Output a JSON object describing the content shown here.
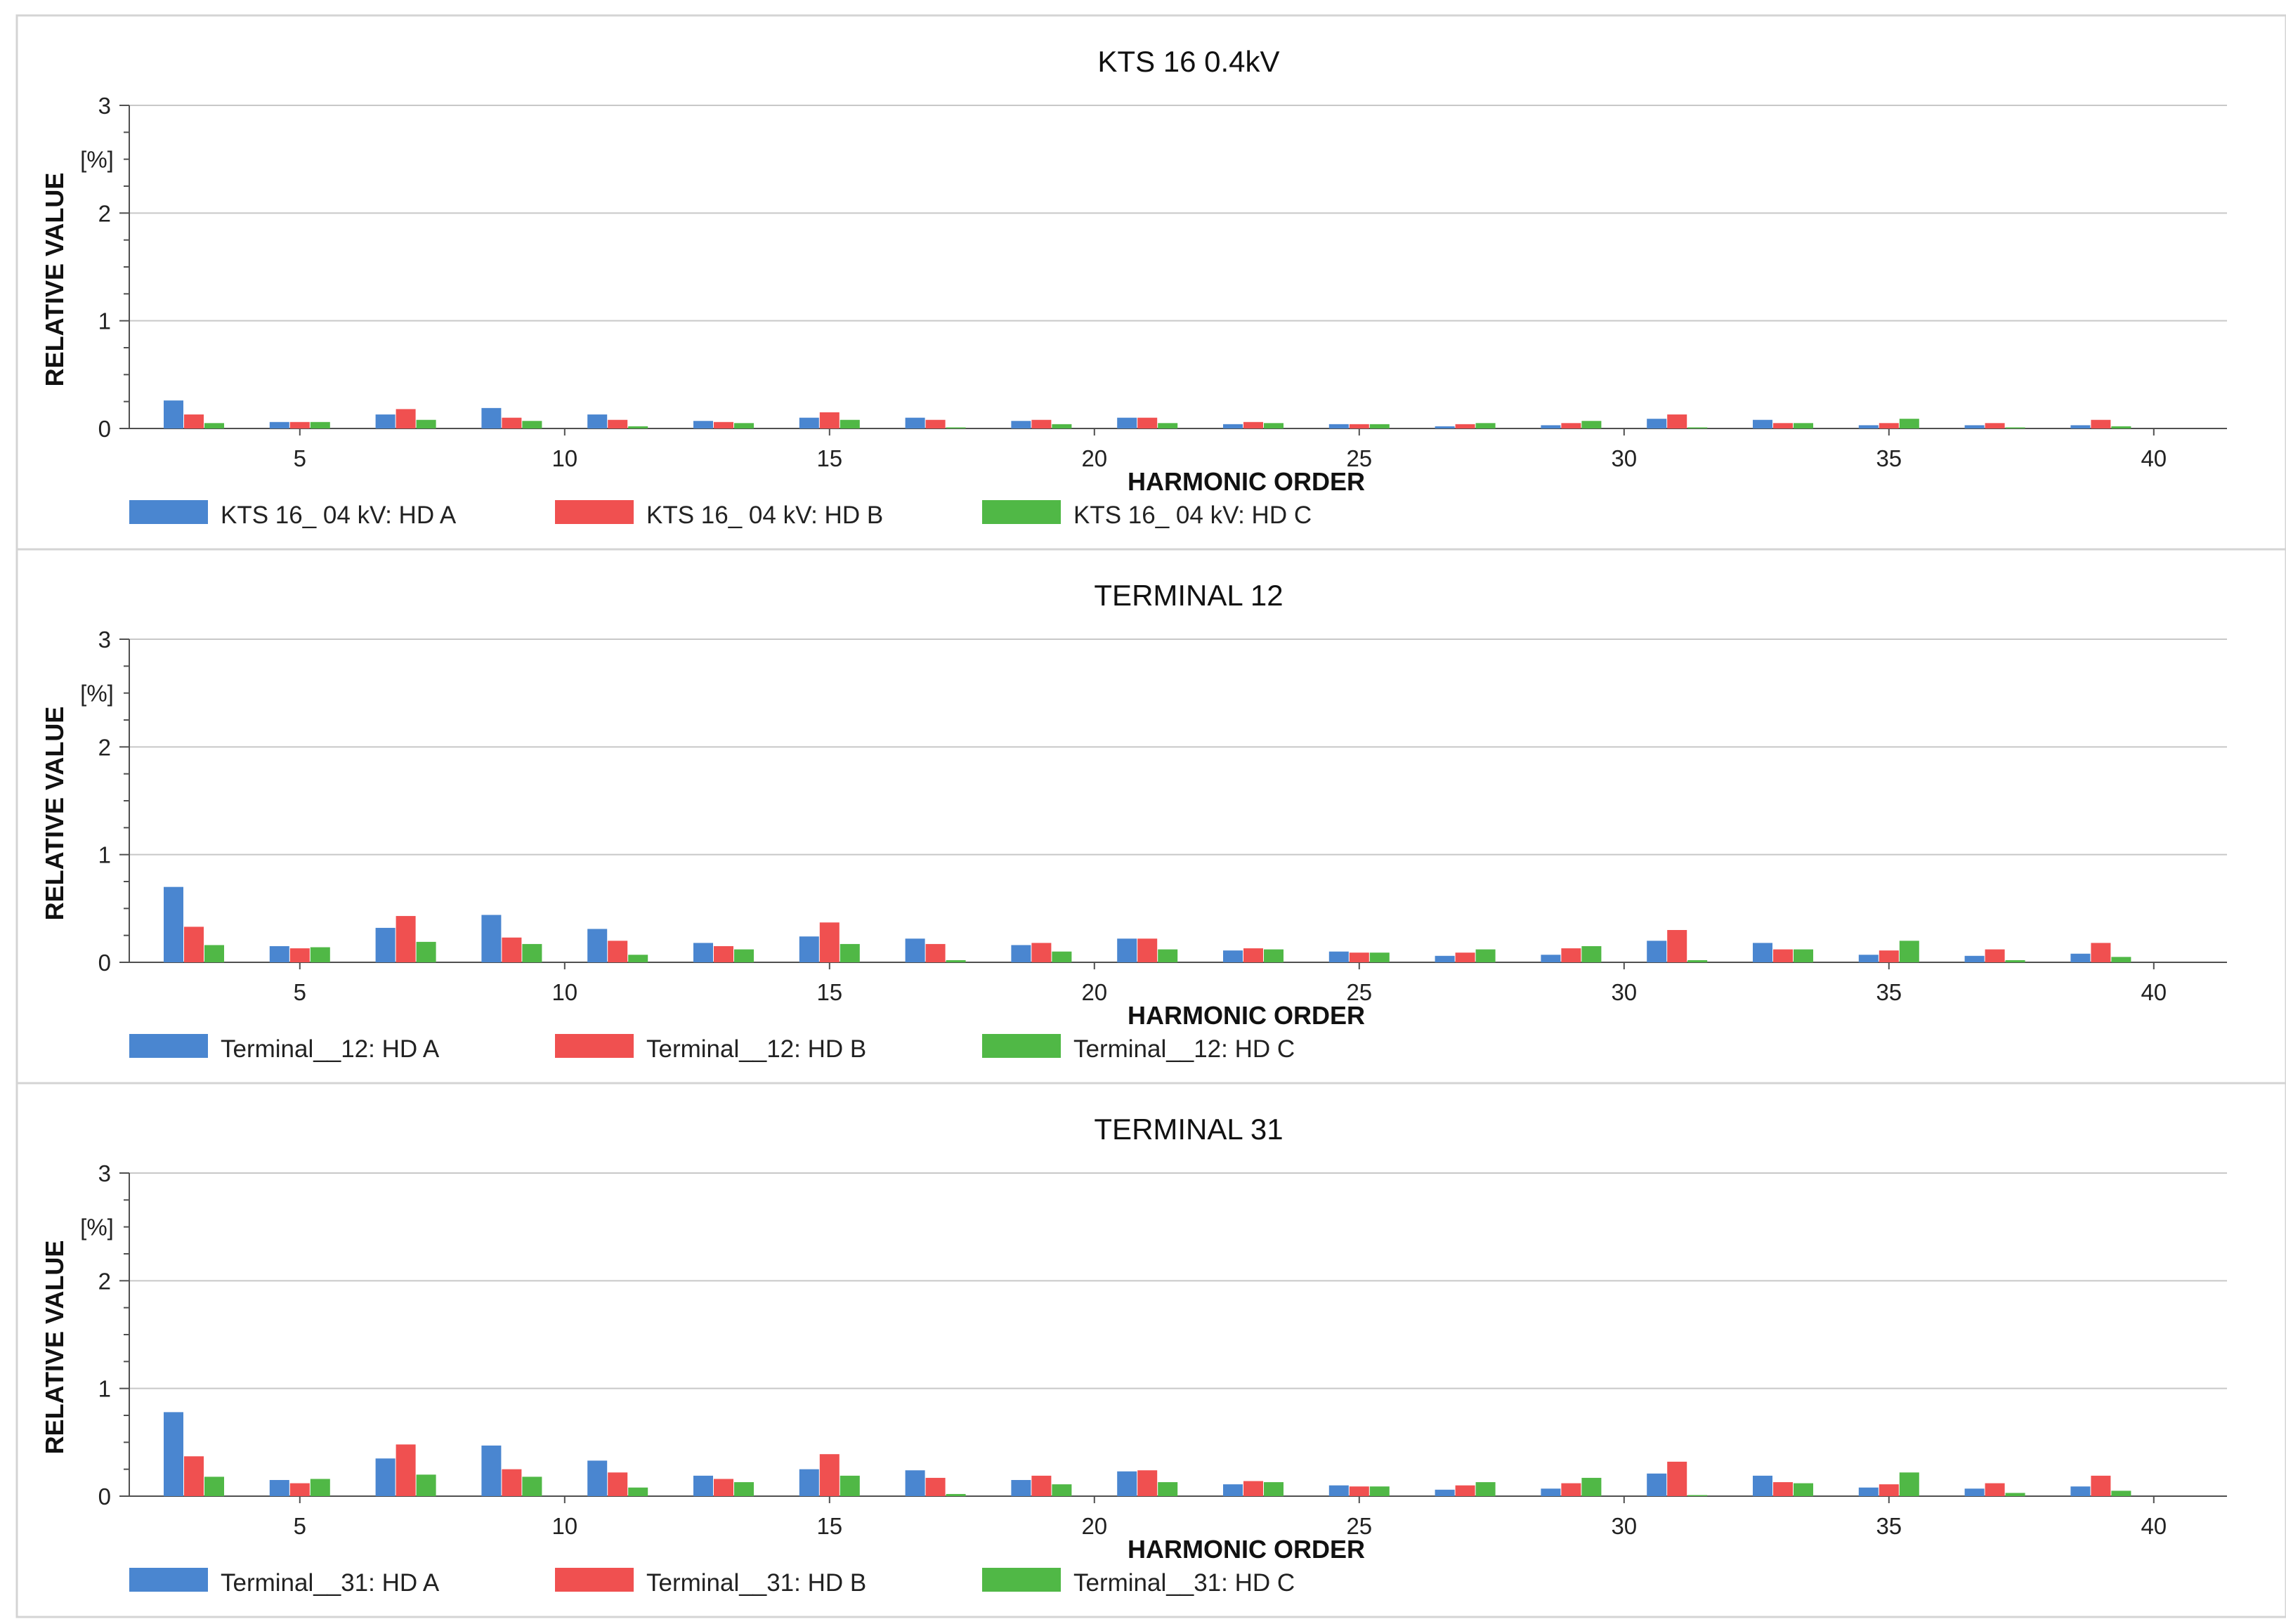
{
  "chart_data": [
    {
      "type": "bar",
      "title": "KTS 16 0.4kV",
      "xlabel": "HARMONIC ORDER",
      "ylabel": "RELATIVE VALUE",
      "yunit": "[%]",
      "ylim": [
        0,
        3
      ],
      "yticks": [
        0,
        1,
        2,
        3
      ],
      "xticks": [
        5,
        10,
        15,
        20,
        25,
        30,
        35,
        40
      ],
      "grid": true,
      "legend": "bottom-left",
      "categories": [
        3,
        5,
        7,
        9,
        11,
        13,
        15,
        17,
        19,
        21,
        23,
        25,
        27,
        29,
        31,
        33,
        35,
        37,
        39
      ],
      "series": [
        {
          "name": "KTS 16_ 04 kV: HD A",
          "color": "#4a86d0",
          "values": [
            0.26,
            0.06,
            0.13,
            0.19,
            0.13,
            0.07,
            0.1,
            0.1,
            0.07,
            0.1,
            0.04,
            0.04,
            0.02,
            0.03,
            0.09,
            0.08,
            0.03,
            0.03,
            0.03
          ]
        },
        {
          "name": "KTS 16_ 04 kV: HD B",
          "color": "#f05050",
          "values": [
            0.13,
            0.06,
            0.18,
            0.1,
            0.08,
            0.06,
            0.15,
            0.08,
            0.08,
            0.1,
            0.06,
            0.04,
            0.04,
            0.05,
            0.13,
            0.05,
            0.05,
            0.05,
            0.08
          ]
        },
        {
          "name": "KTS 16_ 04 kV: HD C",
          "color": "#50b846",
          "values": [
            0.05,
            0.06,
            0.08,
            0.07,
            0.02,
            0.05,
            0.08,
            0.01,
            0.04,
            0.05,
            0.05,
            0.04,
            0.05,
            0.07,
            0.01,
            0.05,
            0.09,
            0.01,
            0.02
          ]
        }
      ]
    },
    {
      "type": "bar",
      "title": "TERMINAL 12",
      "xlabel": "HARMONIC ORDER",
      "ylabel": "RELATIVE VALUE",
      "yunit": "[%]",
      "ylim": [
        0,
        3
      ],
      "yticks": [
        0,
        1,
        2,
        3
      ],
      "xticks": [
        5,
        10,
        15,
        20,
        25,
        30,
        35,
        40
      ],
      "grid": true,
      "legend": "bottom-left",
      "categories": [
        3,
        5,
        7,
        9,
        11,
        13,
        15,
        17,
        19,
        21,
        23,
        25,
        27,
        29,
        31,
        33,
        35,
        37,
        39
      ],
      "series": [
        {
          "name": "Terminal__12: HD A",
          "color": "#4a86d0",
          "values": [
            0.7,
            0.15,
            0.32,
            0.44,
            0.31,
            0.18,
            0.24,
            0.22,
            0.16,
            0.22,
            0.11,
            0.1,
            0.06,
            0.07,
            0.2,
            0.18,
            0.07,
            0.06,
            0.08
          ]
        },
        {
          "name": "Terminal__12: HD B",
          "color": "#f05050",
          "values": [
            0.33,
            0.13,
            0.43,
            0.23,
            0.2,
            0.15,
            0.37,
            0.17,
            0.18,
            0.22,
            0.13,
            0.09,
            0.09,
            0.13,
            0.3,
            0.12,
            0.11,
            0.12,
            0.18
          ]
        },
        {
          "name": "Terminal__12: HD C",
          "color": "#50b846",
          "values": [
            0.16,
            0.14,
            0.19,
            0.17,
            0.07,
            0.12,
            0.17,
            0.02,
            0.1,
            0.12,
            0.12,
            0.09,
            0.12,
            0.15,
            0.02,
            0.12,
            0.2,
            0.02,
            0.05
          ]
        }
      ]
    },
    {
      "type": "bar",
      "title": "TERMINAL 31",
      "xlabel": "HARMONIC ORDER",
      "ylabel": "RELATIVE VALUE",
      "yunit": "[%]",
      "ylim": [
        0,
        3
      ],
      "yticks": [
        0,
        1,
        2,
        3
      ],
      "xticks": [
        5,
        10,
        15,
        20,
        25,
        30,
        35,
        40
      ],
      "grid": true,
      "legend": "bottom-left",
      "categories": [
        3,
        5,
        7,
        9,
        11,
        13,
        15,
        17,
        19,
        21,
        23,
        25,
        27,
        29,
        31,
        33,
        35,
        37,
        39
      ],
      "series": [
        {
          "name": "Terminal__31: HD A",
          "color": "#4a86d0",
          "values": [
            0.78,
            0.15,
            0.35,
            0.47,
            0.33,
            0.19,
            0.25,
            0.24,
            0.15,
            0.23,
            0.11,
            0.1,
            0.06,
            0.07,
            0.21,
            0.19,
            0.08,
            0.07,
            0.09
          ]
        },
        {
          "name": "Terminal__31: HD B",
          "color": "#f05050",
          "values": [
            0.37,
            0.12,
            0.48,
            0.25,
            0.22,
            0.16,
            0.39,
            0.17,
            0.19,
            0.24,
            0.14,
            0.09,
            0.1,
            0.12,
            0.32,
            0.13,
            0.11,
            0.12,
            0.19
          ]
        },
        {
          "name": "Terminal__31: HD C",
          "color": "#50b846",
          "values": [
            0.18,
            0.16,
            0.2,
            0.18,
            0.08,
            0.13,
            0.19,
            0.02,
            0.11,
            0.13,
            0.13,
            0.09,
            0.13,
            0.17,
            0.01,
            0.12,
            0.22,
            0.03,
            0.05
          ]
        }
      ]
    }
  ]
}
